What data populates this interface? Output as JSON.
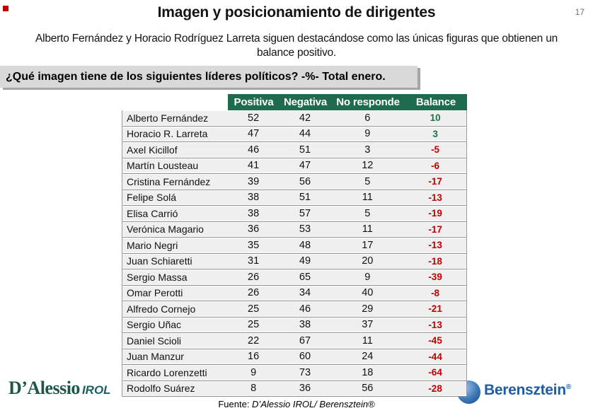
{
  "slide": {
    "page_number": "17",
    "title": "Imagen y posicionamiento de dirigentes",
    "subtitle_line1": "Alberto Fernández y Horacio Rodríguez Larreta siguen destacándose como las únicas figuras que obtienen un",
    "subtitle_line2": "balance positivo.",
    "question": "¿Qué imagen tiene de los siguientes líderes políticos? -%- Total enero.",
    "source_prefix": "Fuente: ",
    "source_body": "D’Alessio IROL/ Berensztein®"
  },
  "logos": {
    "left_main": "D’Alessio",
    "left_suffix": "IROL",
    "right_text": "Berensztein",
    "right_mark": "®"
  },
  "colors": {
    "header_green": "#1f6b4d",
    "balance_positive": "#217346",
    "balance_negative": "#c00000",
    "question_box_bg": "#d9d9d9",
    "question_box_shadow": "#a6a6a6",
    "row_bg": "#efefef",
    "berensztein_blue": "#1d5da6",
    "dalessio_green": "#1e5748"
  },
  "chart_data": {
    "type": "table",
    "title": "¿Qué imagen tiene de los siguientes líderes políticos? -%- Total enero.",
    "columns": [
      "",
      "Positiva",
      "Negativa",
      "No responde",
      "Balance"
    ],
    "rows": [
      [
        "Alberto Fernández",
        "52",
        "42",
        "6",
        "10"
      ],
      [
        "Horacio R. Larreta",
        "47",
        "44",
        "9",
        "3"
      ],
      [
        "Axel Kicillof",
        "46",
        "51",
        "3",
        "-5"
      ],
      [
        "Martín Lousteau",
        "41",
        "47",
        "12",
        "-6"
      ],
      [
        "Cristina Fernández",
        "39",
        "56",
        "5",
        "-17"
      ],
      [
        "Felipe Solá",
        "38",
        "51",
        "11",
        "-13"
      ],
      [
        "Elisa Carrió",
        "38",
        "57",
        "5",
        "-19"
      ],
      [
        "Verónica Magario",
        "36",
        "53",
        "11",
        "-17"
      ],
      [
        "Mario Negri",
        "35",
        "48",
        "17",
        "-13"
      ],
      [
        "Juan Schiaretti",
        "31",
        "49",
        "20",
        "-18"
      ],
      [
        "Sergio Massa",
        "26",
        "65",
        "9",
        "-39"
      ],
      [
        "Omar Perotti",
        "26",
        "34",
        "40",
        "-8"
      ],
      [
        "Alfredo Cornejo",
        "25",
        "46",
        "29",
        "-21"
      ],
      [
        "Sergio Uñac",
        "25",
        "38",
        "37",
        "-13"
      ],
      [
        "Daniel Scioli",
        "22",
        "67",
        "11",
        "-45"
      ],
      [
        "Juan Manzur",
        "16",
        "60",
        "24",
        "-44"
      ],
      [
        "Ricardo Lorenzetti",
        "9",
        "73",
        "18",
        "-64"
      ],
      [
        "Rodolfo Suárez",
        "8",
        "36",
        "56",
        "-28"
      ]
    ]
  }
}
